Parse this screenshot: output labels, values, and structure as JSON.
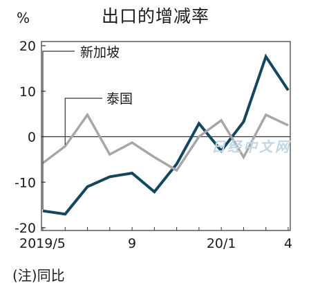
{
  "chart_data": {
    "type": "line",
    "title": "出口的增减率",
    "unit": "%",
    "note": "(注)同比",
    "watermark": "日经中文网",
    "x": [
      "2019/5",
      "2019/6",
      "2019/7",
      "2019/8",
      "2019/9",
      "2019/10",
      "2019/11",
      "2019/12",
      "20/1",
      "20/2",
      "20/3",
      "20/4"
    ],
    "x_tick_labels": [
      {
        "index": 0,
        "label": "2019/5"
      },
      {
        "index": 4,
        "label": "9"
      },
      {
        "index": 8,
        "label": "20/1"
      },
      {
        "index": 11,
        "label": "4"
      }
    ],
    "ylim": [
      -20,
      20
    ],
    "yticks": [
      20,
      10,
      0,
      -10,
      -20
    ],
    "grid": false,
    "zero_line": true,
    "series": [
      {
        "name": "新加坡",
        "color": "#13475f",
        "values": [
          -16.3,
          -17.0,
          -11.0,
          -8.8,
          -8.0,
          -12.1,
          -6.0,
          2.9,
          -3.1,
          3.3,
          17.6,
          10.2
        ]
      },
      {
        "name": "泰国",
        "color": "#a7a7a7",
        "values": [
          -5.8,
          -2.1,
          4.8,
          -3.9,
          -1.3,
          -4.5,
          -7.4,
          0.0,
          3.6,
          -4.5,
          4.8,
          2.5
        ]
      }
    ],
    "annotations": [
      {
        "text": "新加坡",
        "series": 0,
        "point_index": 0
      },
      {
        "text": "泰国",
        "series": 1,
        "point_index": 1
      }
    ]
  }
}
